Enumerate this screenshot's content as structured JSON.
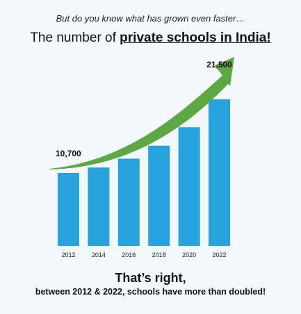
{
  "intro_text": "But do you know what has grown even faster…",
  "headline": {
    "prefix": "The number of ",
    "emphasis": "private schools in India!"
  },
  "chart_data": {
    "type": "bar",
    "categories": [
      "2012",
      "2014",
      "2016",
      "2018",
      "2020",
      "2022"
    ],
    "values": [
      10700,
      11500,
      12800,
      14700,
      17400,
      21500
    ],
    "annotations": [
      {
        "x": "2012",
        "label": "10,700"
      },
      {
        "x": "2022",
        "label": "21,500"
      }
    ],
    "trend_arrow": true,
    "ylim": [
      0,
      21500
    ],
    "grid": false,
    "title": "",
    "xlabel": "",
    "ylabel": ""
  },
  "colors": {
    "bar": "#29a3df",
    "arrow": "#5ea843",
    "background": "#f3f8fc"
  },
  "outro": {
    "title": "That’s right,",
    "subtitle": "between 2012 & 2022, schools have more than doubled!"
  }
}
